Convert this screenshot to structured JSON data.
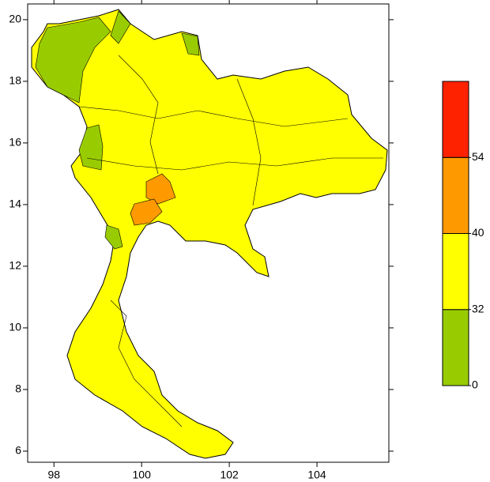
{
  "map": {
    "xlim": [
      97.4,
      105.64
    ],
    "ylim": [
      5.64,
      20.51
    ],
    "xticks": [
      98,
      100,
      102,
      104
    ],
    "yticks": [
      6,
      8,
      10,
      12,
      14,
      16,
      18,
      20
    ],
    "colorbar": {
      "levels": [
        0,
        32,
        40,
        54
      ],
      "colors": [
        "#99cc00",
        "#ffff00",
        "#ff9900",
        "#ff2200"
      ]
    }
  }
}
